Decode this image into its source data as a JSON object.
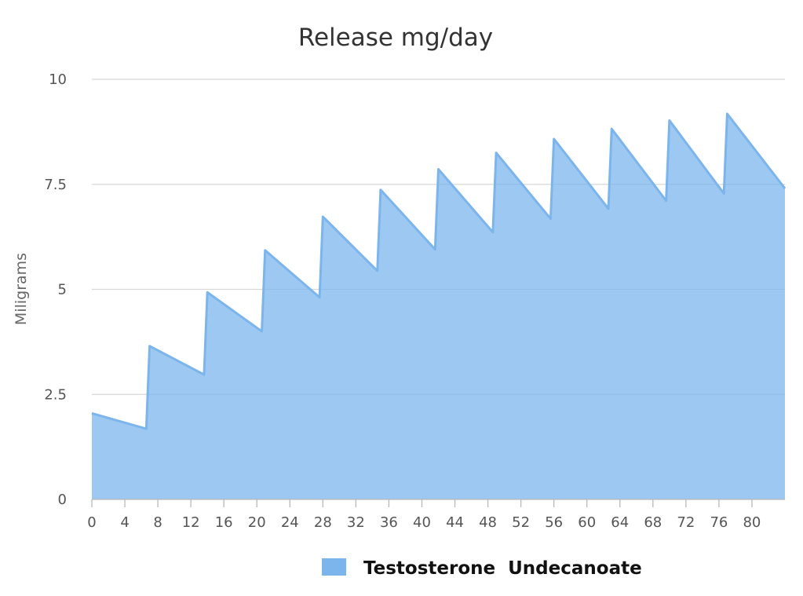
{
  "chart_data": {
    "type": "area",
    "title": "Release mg/day",
    "xlabel": "",
    "ylabel": "Miligrams",
    "xlim": [
      0,
      84
    ],
    "ylim": [
      0,
      10
    ],
    "x_ticks": [
      0,
      4,
      8,
      12,
      16,
      20,
      24,
      28,
      32,
      36,
      40,
      44,
      48,
      52,
      56,
      60,
      64,
      68,
      72,
      76,
      80
    ],
    "y_ticks": [
      {
        "value": 0,
        "label": "0"
      },
      {
        "value": 2.5,
        "label": "2.5"
      },
      {
        "value": 5,
        "label": "5"
      },
      {
        "value": 7.5,
        "label": "7.5"
      },
      {
        "value": 10,
        "label": "10"
      }
    ],
    "grid": true,
    "legend_position": "bottom-center",
    "series": [
      {
        "name": "Testosterone  Undecanoate",
        "color": "#7cb5ec",
        "x": [
          0,
          6.6,
          7,
          13.6,
          14,
          20.6,
          21,
          27.6,
          28,
          34.6,
          35,
          41.6,
          42,
          48.6,
          49,
          55.6,
          56,
          62.6,
          63,
          69.6,
          70,
          76.6,
          77,
          84
        ],
        "y": [
          2.05,
          1.68,
          3.65,
          2.97,
          4.93,
          4.0,
          5.93,
          4.81,
          6.73,
          5.44,
          7.37,
          5.95,
          7.86,
          6.36,
          8.25,
          6.68,
          8.58,
          6.92,
          8.82,
          7.11,
          9.02,
          7.28,
          9.18,
          7.4
        ]
      }
    ]
  }
}
